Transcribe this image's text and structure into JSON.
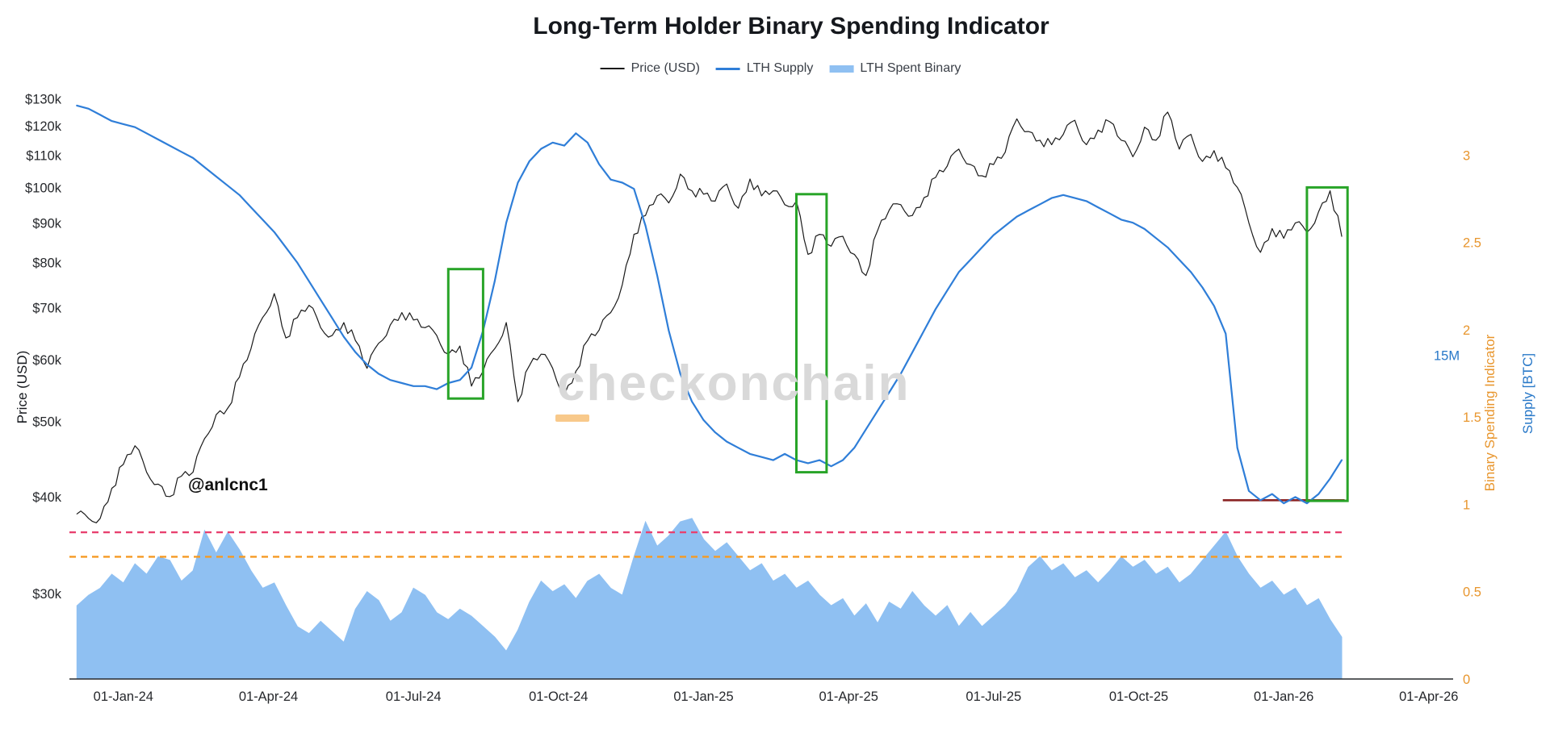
{
  "chart_data": {
    "type": "line",
    "title": "Long-Term Holder Binary Spending Indicator",
    "watermark": "checkonchain",
    "annotation": "@anlcnc1",
    "grid": false,
    "legend_position": "top-center",
    "x_start": 2023.92,
    "x_step": 0.02,
    "x_axis": {
      "type": "date",
      "range": [
        2023.907,
        2026.292
      ],
      "ticks": [
        {
          "label": "01-Jan-24",
          "value": 2024.0
        },
        {
          "label": "01-Apr-24",
          "value": 2024.25
        },
        {
          "label": "01-Jul-24",
          "value": 2024.5
        },
        {
          "label": "01-Oct-24",
          "value": 2024.75
        },
        {
          "label": "01-Jan-25",
          "value": 2025.0
        },
        {
          "label": "01-Apr-25",
          "value": 2025.25
        },
        {
          "label": "01-Jul-25",
          "value": 2025.5
        },
        {
          "label": "01-Oct-25",
          "value": 2025.75
        },
        {
          "label": "01-Jan-26",
          "value": 2026.0
        },
        {
          "label": "01-Apr-26",
          "value": 2026.25
        }
      ]
    },
    "y_axes": {
      "price": {
        "label": "Price (USD)",
        "side": "left",
        "scale": "log",
        "unit": "USD thousands",
        "range": [
          23.3,
          134.6
        ],
        "color": "#1a1a1a",
        "ticks": [
          {
            "label": "$130k",
            "value": 130
          },
          {
            "label": "$120k",
            "value": 120
          },
          {
            "label": "$110k",
            "value": 110
          },
          {
            "label": "$100k",
            "value": 100
          },
          {
            "label": "$90k",
            "value": 90
          },
          {
            "label": "$80k",
            "value": 80
          },
          {
            "label": "$70k",
            "value": 70
          },
          {
            "label": "$60k",
            "value": 60
          },
          {
            "label": "$50k",
            "value": 50
          },
          {
            "label": "$40k",
            "value": 40
          },
          {
            "label": "$30k",
            "value": 30
          }
        ]
      },
      "binary": {
        "label": "Binary Spending Indicator",
        "side": "right",
        "scale": "linear",
        "range": [
          0,
          3.39
        ],
        "color": "#e8962e",
        "ticks": [
          {
            "label": "3",
            "value": 3
          },
          {
            "label": "2.5",
            "value": 2.5
          },
          {
            "label": "2",
            "value": 2
          },
          {
            "label": "1.5",
            "value": 1.5
          },
          {
            "label": "1",
            "value": 1
          },
          {
            "label": "0.5",
            "value": 0.5
          },
          {
            "label": "0",
            "value": 0
          }
        ]
      },
      "supply": {
        "label": "Supply [BTC]",
        "side": "right-outer",
        "scale": "linear",
        "unit": "million BTC",
        "range": [
          13.95,
          15.87
        ],
        "color": "#2878c8",
        "ticks": [
          {
            "label": "15M",
            "value": 15
          }
        ]
      }
    },
    "series": [
      {
        "id": "price-line",
        "name": "Price (USD)",
        "type": "line",
        "axis": "price",
        "color": "#1a1a1a",
        "width": 1.2,
        "jitter": true,
        "values": [
          38,
          37.5,
          37.5,
          41,
          44,
          46.5,
          43,
          41.5,
          40,
          42.5,
          43,
          47.5,
          51,
          52,
          57,
          62,
          68,
          73,
          64,
          68,
          70.5,
          66,
          64.5,
          67,
          63.5,
          58.5,
          63,
          66.5,
          69,
          67.5,
          66,
          64.5,
          61,
          62.5,
          55.5,
          58,
          62,
          67,
          53,
          59,
          61,
          58.5,
          54,
          58,
          63.5,
          65.5,
          69,
          75,
          87,
          92,
          97.5,
          95.5,
          104,
          99,
          98,
          96,
          101,
          94,
          102.5,
          97.5,
          99,
          95,
          96,
          82,
          87,
          84,
          86.5,
          82,
          77,
          88,
          93.5,
          95,
          92,
          97,
          103,
          106.5,
          112,
          107,
          103.5,
          107,
          111,
          122.5,
          118,
          115,
          113.5,
          117,
          122,
          113.5,
          118.5,
          121.5,
          115,
          109.5,
          119.5,
          115,
          125,
          112,
          117,
          108,
          111.5,
          106,
          100,
          90,
          82.5,
          88.5,
          86,
          90,
          87.5,
          93,
          99,
          86.5
        ]
      },
      {
        "id": "lth-supply-line",
        "name": "LTH Supply",
        "type": "line",
        "axis": "supply",
        "color": "#2f7ed8",
        "width": 2.2,
        "jitter": false,
        "values": [
          15.81,
          15.8,
          15.78,
          15.76,
          15.75,
          15.74,
          15.72,
          15.7,
          15.68,
          15.66,
          15.64,
          15.61,
          15.58,
          15.55,
          15.52,
          15.48,
          15.44,
          15.4,
          15.35,
          15.3,
          15.24,
          15.18,
          15.12,
          15.06,
          15.01,
          14.97,
          14.94,
          14.92,
          14.91,
          14.9,
          14.9,
          14.89,
          14.91,
          14.92,
          14.96,
          15.08,
          15.24,
          15.43,
          15.56,
          15.63,
          15.67,
          15.69,
          15.68,
          15.72,
          15.69,
          15.62,
          15.57,
          15.56,
          15.54,
          15.42,
          15.26,
          15.08,
          14.94,
          14.85,
          14.79,
          14.75,
          14.72,
          14.7,
          14.68,
          14.67,
          14.66,
          14.68,
          14.66,
          14.65,
          14.66,
          14.64,
          14.66,
          14.7,
          14.76,
          14.82,
          14.88,
          14.94,
          15.01,
          15.08,
          15.15,
          15.21,
          15.27,
          15.31,
          15.35,
          15.39,
          15.42,
          15.45,
          15.47,
          15.49,
          15.51,
          15.52,
          15.51,
          15.5,
          15.48,
          15.46,
          15.44,
          15.43,
          15.41,
          15.38,
          15.35,
          15.31,
          15.27,
          15.22,
          15.16,
          15.07,
          14.7,
          14.56,
          14.53,
          14.55,
          14.52,
          14.54,
          14.52,
          14.55,
          14.6,
          14.66
        ]
      },
      {
        "id": "lth-spent-binary-area",
        "name": "LTH Spent Binary",
        "type": "area",
        "axis": "binary",
        "color": "#8fc0f2",
        "width": 1,
        "jitter": false,
        "values": [
          0.42,
          0.48,
          0.52,
          0.6,
          0.55,
          0.66,
          0.6,
          0.7,
          0.68,
          0.56,
          0.62,
          0.85,
          0.72,
          0.84,
          0.74,
          0.62,
          0.52,
          0.55,
          0.42,
          0.3,
          0.26,
          0.33,
          0.27,
          0.21,
          0.4,
          0.5,
          0.45,
          0.33,
          0.38,
          0.52,
          0.48,
          0.38,
          0.34,
          0.4,
          0.36,
          0.3,
          0.24,
          0.16,
          0.28,
          0.44,
          0.56,
          0.5,
          0.54,
          0.46,
          0.56,
          0.6,
          0.52,
          0.48,
          0.7,
          0.9,
          0.76,
          0.82,
          0.9,
          0.92,
          0.8,
          0.73,
          0.78,
          0.7,
          0.62,
          0.66,
          0.56,
          0.6,
          0.52,
          0.56,
          0.48,
          0.42,
          0.46,
          0.36,
          0.43,
          0.32,
          0.44,
          0.4,
          0.5,
          0.42,
          0.36,
          0.42,
          0.3,
          0.38,
          0.3,
          0.36,
          0.42,
          0.5,
          0.64,
          0.7,
          0.62,
          0.66,
          0.58,
          0.62,
          0.55,
          0.62,
          0.7,
          0.64,
          0.68,
          0.6,
          0.64,
          0.55,
          0.6,
          0.68,
          0.76,
          0.84,
          0.7,
          0.6,
          0.52,
          0.56,
          0.48,
          0.52,
          0.42,
          0.46,
          0.34,
          0.24
        ]
      }
    ],
    "threshold_lines": [
      {
        "id": "upper-threshold-line",
        "axis": "binary",
        "value": 0.84,
        "color": "#e8416f",
        "style": "dashed",
        "x0": 2023.907,
        "x1": 2026.105
      },
      {
        "id": "lower-threshold-line",
        "axis": "binary",
        "value": 0.7,
        "color": "#f59a23",
        "style": "dashed",
        "x0": 2023.907,
        "x1": 2026.105
      }
    ],
    "marker_line": {
      "id": "supply-floor-marker",
      "axis": "supply",
      "value": 14.53,
      "x0": 2025.895,
      "x1": 2026.105,
      "color": "#8b2424"
    },
    "highlight_boxes": [
      {
        "x0": 2024.56,
        "x1": 2024.62,
        "price0": 53.5,
        "price1": 78.5
      },
      {
        "x0": 2025.16,
        "x1": 2025.212,
        "price0": 43,
        "price1": 98
      },
      {
        "x0": 2026.04,
        "x1": 2026.11,
        "price0": 39.5,
        "price1": 100
      }
    ],
    "highlight_box_color": "#28a428"
  }
}
